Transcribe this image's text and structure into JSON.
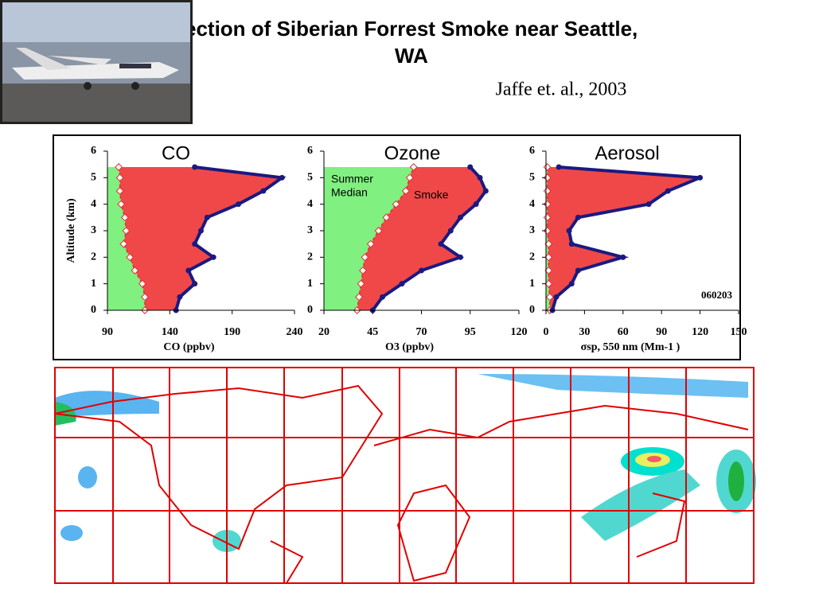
{
  "title_lines": [
    "ection of Siberian Forrest Smoke near Seattle,",
    "WA"
  ],
  "citation": "Jaffe et. al., 2003",
  "chart_data": [
    {
      "type": "profile",
      "title": "CO",
      "xlabel": "CO (ppbv)",
      "ylabel": "Altitude (km)",
      "xlim": [
        90,
        240
      ],
      "xticks": [
        90,
        140,
        190,
        240
      ],
      "ylim": [
        0,
        6
      ],
      "yticks": [
        0,
        1,
        2,
        3,
        4,
        5,
        6
      ],
      "altitude": [
        0,
        0.5,
        1,
        1.5,
        2,
        2.5,
        3,
        3.5,
        4,
        4.5,
        5,
        5.4
      ],
      "series": [
        {
          "name": "Summer Median",
          "color": "#80f080",
          "values": [
            120,
            120,
            118,
            112,
            108,
            103,
            105,
            104,
            101,
            100,
            100,
            99
          ]
        },
        {
          "name": "Smoke",
          "color": "#f04848",
          "values": [
            145,
            148,
            160,
            155,
            175,
            160,
            165,
            170,
            195,
            215,
            230,
            160
          ]
        }
      ]
    },
    {
      "type": "profile",
      "title": "Ozone",
      "xlabel": "O3 (ppbv)",
      "annotations": [
        "Summer",
        "Median",
        "Smoke"
      ],
      "xlim": [
        20,
        120
      ],
      "xticks": [
        20,
        45,
        70,
        95,
        120
      ],
      "ylim": [
        0,
        6
      ],
      "yticks": [
        0,
        1,
        2,
        3,
        4,
        5,
        6
      ],
      "altitude": [
        0,
        0.5,
        1,
        1.5,
        2,
        2.5,
        3,
        3.5,
        4,
        4.5,
        5,
        5.4
      ],
      "series": [
        {
          "name": "Summer Median",
          "color": "#80f080",
          "values": [
            37,
            38,
            39,
            40,
            41,
            44,
            48,
            52,
            57,
            62,
            64,
            66
          ]
        },
        {
          "name": "Smoke",
          "color": "#f04848",
          "values": [
            45,
            50,
            60,
            70,
            90,
            80,
            85,
            90,
            98,
            103,
            100,
            95
          ]
        }
      ]
    },
    {
      "type": "profile",
      "title": "Aerosol",
      "xlabel": "σsp, 550 nm (Mm-1 )",
      "annotations": [
        "060203"
      ],
      "xlim": [
        0,
        150
      ],
      "xticks": [
        0,
        30,
        60,
        90,
        120,
        150
      ],
      "ylim": [
        0,
        6
      ],
      "yticks": [
        0,
        1,
        2,
        3,
        4,
        5,
        6
      ],
      "altitude": [
        0,
        0.5,
        1,
        1.5,
        2,
        2.5,
        3,
        3.5,
        4,
        4.5,
        5,
        5.4
      ],
      "series": [
        {
          "name": "Summer Median",
          "color": "#80f080",
          "values": [
            3,
            3,
            2,
            2,
            2,
            2,
            1,
            1,
            1,
            1,
            1,
            1
          ]
        },
        {
          "name": "Smoke",
          "color": "#f04848",
          "values": [
            5,
            8,
            20,
            25,
            60,
            20,
            18,
            25,
            80,
            95,
            120,
            10
          ]
        }
      ]
    }
  ]
}
